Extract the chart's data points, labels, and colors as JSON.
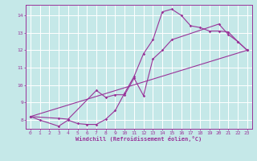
{
  "title": "",
  "xlabel": "Windchill (Refroidissement éolien,°C)",
  "xlim": [
    -0.5,
    23.5
  ],
  "ylim": [
    7.5,
    14.6
  ],
  "xticks": [
    0,
    1,
    2,
    3,
    4,
    5,
    6,
    7,
    8,
    9,
    10,
    11,
    12,
    13,
    14,
    15,
    16,
    17,
    18,
    19,
    20,
    21,
    22,
    23
  ],
  "yticks": [
    8,
    9,
    10,
    11,
    12,
    13,
    14
  ],
  "bg_color": "#c5e8e8",
  "grid_color": "#ffffff",
  "line_color": "#993399",
  "line1_x": [
    0,
    1,
    3,
    4,
    5,
    6,
    7,
    8,
    9,
    10,
    11,
    12,
    13,
    14,
    15,
    16,
    17,
    18,
    19,
    20,
    21,
    22,
    23
  ],
  "line1_y": [
    8.2,
    8.0,
    7.65,
    8.0,
    7.8,
    7.75,
    7.75,
    8.05,
    8.55,
    9.55,
    10.5,
    11.8,
    12.6,
    14.2,
    14.35,
    14.0,
    13.4,
    13.3,
    13.1,
    13.1,
    13.05,
    12.5,
    12.0
  ],
  "line2_x": [
    0,
    3,
    4,
    7,
    8,
    9,
    10,
    11,
    12,
    13,
    14,
    15,
    20,
    21,
    22,
    23
  ],
  "line2_y": [
    8.2,
    8.1,
    8.05,
    9.7,
    9.3,
    9.45,
    9.45,
    10.4,
    9.4,
    11.5,
    12.0,
    12.6,
    13.5,
    12.9,
    12.5,
    12.0
  ],
  "line3_x": [
    0,
    23
  ],
  "line3_y": [
    8.2,
    12.0
  ]
}
